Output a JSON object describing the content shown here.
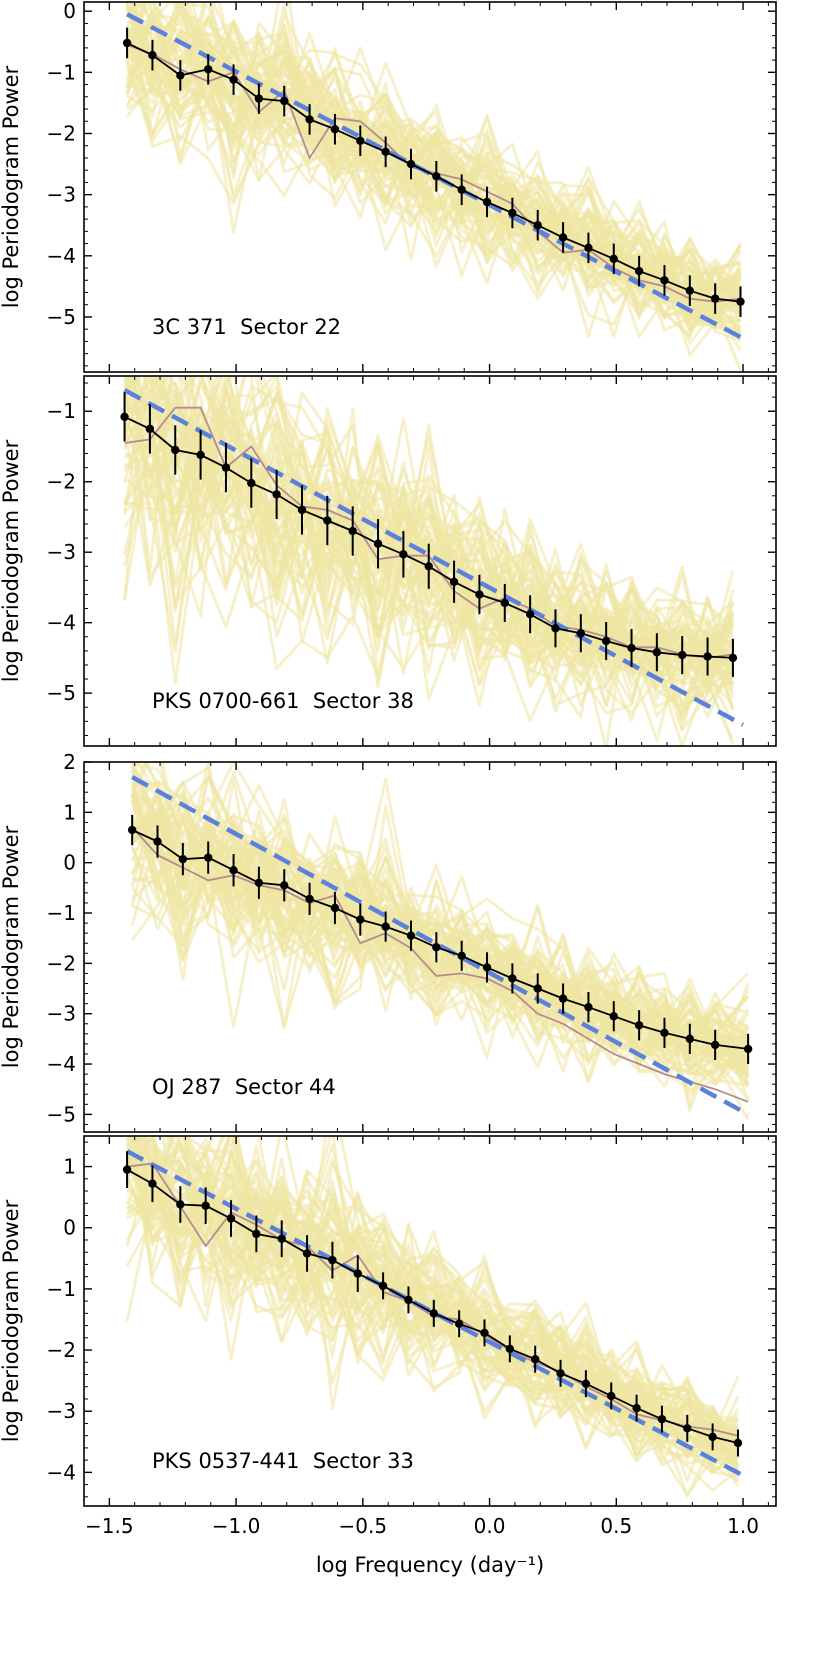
{
  "chart_data": [
    {
      "type": "line",
      "source_label": "3C 371  Sector 22",
      "ylabel": "log Periodogram Power",
      "xlabel": "",
      "xlim": [
        -1.6,
        1.13
      ],
      "ylim": [
        -5.9,
        0.15
      ],
      "xticks": [
        -1.5,
        -1.0,
        -0.5,
        0.0,
        0.5,
        1.0
      ],
      "xtick_labels": [],
      "yticks": [
        0,
        -1,
        -2,
        -3,
        -4,
        -5
      ],
      "ytick_labels": [
        "0",
        "−1",
        "−2",
        "−3",
        "−4",
        "−5"
      ],
      "series": [
        {
          "style": "observed-binned",
          "x": [
            -1.43,
            -1.33,
            -1.22,
            -1.11,
            -1.01,
            -0.91,
            -0.81,
            -0.71,
            -0.61,
            -0.51,
            -0.41,
            -0.31,
            -0.21,
            -0.11,
            -0.01,
            0.09,
            0.19,
            0.29,
            0.39,
            0.49,
            0.59,
            0.69,
            0.79,
            0.89,
            0.99
          ],
          "y": [
            -0.52,
            -0.72,
            -1.05,
            -0.95,
            -1.12,
            -1.43,
            -1.47,
            -1.77,
            -1.93,
            -2.12,
            -2.3,
            -2.5,
            -2.7,
            -2.92,
            -3.12,
            -3.3,
            -3.5,
            -3.7,
            -3.87,
            -4.05,
            -4.25,
            -4.4,
            -4.57,
            -4.7,
            -4.75
          ],
          "yerr": [
            0.25,
            0.25,
            0.25,
            0.25,
            0.25,
            0.25,
            0.25,
            0.25,
            0.25,
            0.25,
            0.25,
            0.25,
            0.25,
            0.25,
            0.25,
            0.25,
            0.25,
            0.25,
            0.25,
            0.25,
            0.25,
            0.25,
            0.25,
            0.25,
            0.25
          ]
        },
        {
          "style": "raw-periodogram",
          "x": [
            -1.43,
            -1.33,
            -1.22,
            -1.11,
            -1.01,
            -0.91,
            -0.81,
            -0.71,
            -0.61,
            -0.51,
            -0.41,
            -0.31,
            -0.21,
            -0.11,
            -0.01,
            0.09,
            0.19,
            0.29,
            0.39,
            0.49,
            0.59,
            0.69,
            0.79,
            0.89,
            0.99
          ],
          "y": [
            -0.55,
            -0.7,
            -0.95,
            -1.15,
            -1.0,
            -1.65,
            -1.3,
            -2.4,
            -1.75,
            -1.8,
            -2.15,
            -2.55,
            -2.65,
            -2.75,
            -2.95,
            -3.15,
            -3.6,
            -3.95,
            -3.9,
            -4.2,
            -4.4,
            -4.5,
            -4.7,
            -4.75,
            -4.7
          ]
        },
        {
          "style": "model-fit",
          "x": [
            -1.43,
            1.0
          ],
          "y": [
            -0.05,
            -5.35
          ]
        }
      ]
    },
    {
      "type": "line",
      "source_label": "PKS 0700-661  Sector 38",
      "ylabel": "log Periodogram Power",
      "xlabel": "",
      "xlim": [
        -1.6,
        1.13
      ],
      "ylim": [
        -5.75,
        -0.5
      ],
      "xticks": [
        -1.5,
        -1.0,
        -0.5,
        0.0,
        0.5,
        1.0
      ],
      "xtick_labels": [],
      "yticks": [
        -1,
        -2,
        -3,
        -4,
        -5
      ],
      "ytick_labels": [
        "−1",
        "−2",
        "−3",
        "−4",
        "−5"
      ],
      "series": [
        {
          "style": "observed-binned",
          "x": [
            -1.44,
            -1.34,
            -1.24,
            -1.14,
            -1.04,
            -0.94,
            -0.84,
            -0.74,
            -0.64,
            -0.54,
            -0.44,
            -0.34,
            -0.24,
            -0.14,
            -0.04,
            0.06,
            0.16,
            0.26,
            0.36,
            0.46,
            0.56,
            0.66,
            0.76,
            0.86,
            0.96
          ],
          "y": [
            -1.08,
            -1.25,
            -1.55,
            -1.62,
            -1.8,
            -2.02,
            -2.18,
            -2.4,
            -2.55,
            -2.7,
            -2.88,
            -3.03,
            -3.2,
            -3.42,
            -3.6,
            -3.72,
            -3.88,
            -4.08,
            -4.15,
            -4.26,
            -4.36,
            -4.42,
            -4.46,
            -4.48,
            -4.5
          ],
          "yerr": [
            0.35,
            0.35,
            0.35,
            0.35,
            0.35,
            0.35,
            0.35,
            0.35,
            0.35,
            0.35,
            0.35,
            0.33,
            0.32,
            0.3,
            0.28,
            0.27,
            0.27,
            0.27,
            0.27,
            0.27,
            0.27,
            0.27,
            0.27,
            0.27,
            0.27
          ]
        },
        {
          "style": "raw-periodogram",
          "x": [
            -1.44,
            -1.34,
            -1.24,
            -1.14,
            -1.04,
            -0.94,
            -0.84,
            -0.74,
            -0.64,
            -0.54,
            -0.44,
            -0.34,
            -0.24,
            -0.14,
            -0.04,
            0.06,
            0.16,
            0.26,
            0.36,
            0.46,
            0.56,
            0.66,
            0.76,
            0.86,
            0.96
          ],
          "y": [
            -1.45,
            -1.4,
            -0.95,
            -0.95,
            -1.8,
            -1.5,
            -2.05,
            -2.35,
            -2.4,
            -2.55,
            -3.1,
            -3.05,
            -3.05,
            -3.55,
            -3.8,
            -3.65,
            -3.8,
            -4.05,
            -4.1,
            -4.2,
            -4.35,
            -4.35,
            -4.45,
            -4.5,
            -4.45
          ]
        },
        {
          "style": "model-fit",
          "x": [
            -1.44,
            1.0
          ],
          "y": [
            -0.7,
            -5.45
          ]
        }
      ]
    },
    {
      "type": "line",
      "source_label": "OJ 287  Sector 44",
      "ylabel": "log Periodogram Power",
      "xlabel": "",
      "xlim": [
        -1.6,
        1.13
      ],
      "ylim": [
        -5.35,
        2.0
      ],
      "xticks": [
        -1.5,
        -1.0,
        -0.5,
        0.0,
        0.5,
        1.0
      ],
      "xtick_labels": [],
      "yticks": [
        2,
        1,
        0,
        -1,
        -2,
        -3,
        -4,
        -5
      ],
      "ytick_labels": [
        "2",
        "1",
        "0",
        "−1",
        "−2",
        "−3",
        "−4",
        "−5"
      ],
      "series": [
        {
          "style": "observed-binned",
          "x": [
            -1.41,
            -1.31,
            -1.21,
            -1.11,
            -1.01,
            -0.91,
            -0.81,
            -0.71,
            -0.61,
            -0.51,
            -0.41,
            -0.31,
            -0.21,
            -0.11,
            -0.01,
            0.09,
            0.19,
            0.29,
            0.39,
            0.49,
            0.59,
            0.69,
            0.79,
            0.89,
            1.02
          ],
          "y": [
            0.65,
            0.42,
            0.07,
            0.1,
            -0.15,
            -0.4,
            -0.45,
            -0.72,
            -0.9,
            -1.13,
            -1.27,
            -1.45,
            -1.68,
            -1.85,
            -2.08,
            -2.3,
            -2.5,
            -2.7,
            -2.87,
            -3.05,
            -3.23,
            -3.38,
            -3.5,
            -3.62,
            -3.7
          ],
          "yerr": [
            0.3,
            0.32,
            0.32,
            0.32,
            0.32,
            0.32,
            0.32,
            0.32,
            0.32,
            0.32,
            0.3,
            0.3,
            0.3,
            0.3,
            0.3,
            0.3,
            0.3,
            0.3,
            0.3,
            0.3,
            0.3,
            0.3,
            0.3,
            0.3,
            0.3
          ]
        },
        {
          "style": "raw-periodogram",
          "x": [
            -1.41,
            -1.31,
            -1.21,
            -1.11,
            -1.01,
            -0.91,
            -0.81,
            -0.71,
            -0.61,
            -0.51,
            -0.41,
            -0.31,
            -0.21,
            -0.11,
            -0.01,
            0.09,
            0.19,
            0.29,
            0.39,
            0.49,
            0.59,
            0.69,
            0.79,
            0.89,
            1.02
          ],
          "y": [
            0.7,
            0.15,
            -0.1,
            -0.35,
            -0.25,
            -0.45,
            -0.55,
            -0.8,
            -0.65,
            -1.6,
            -1.4,
            -1.7,
            -2.25,
            -2.2,
            -2.3,
            -2.55,
            -3.0,
            -3.2,
            -3.5,
            -3.8,
            -4.0,
            -4.2,
            -4.35,
            -4.5,
            -4.75
          ]
        },
        {
          "style": "model-fit",
          "x": [
            -1.41,
            1.02
          ],
          "y": [
            1.7,
            -5.0
          ]
        }
      ]
    },
    {
      "type": "line",
      "source_label": "PKS 0537-441  Sector 33",
      "ylabel": "log Periodogram Power",
      "xlabel": "log Frequency (day⁻¹)",
      "xlim": [
        -1.6,
        1.13
      ],
      "ylim": [
        -4.55,
        1.5
      ],
      "xticks": [
        -1.5,
        -1.0,
        -0.5,
        0.0,
        0.5,
        1.0
      ],
      "xtick_labels": [
        "−1.5",
        "−1.0",
        "−0.5",
        "0.0",
        "0.5",
        "1.0"
      ],
      "yticks": [
        1,
        0,
        -1,
        -2,
        -3,
        -4
      ],
      "ytick_labels": [
        "1",
        "0",
        "−1",
        "−2",
        "−3",
        "−4"
      ],
      "series": [
        {
          "style": "observed-binned",
          "x": [
            -1.43,
            -1.33,
            -1.22,
            -1.12,
            -1.02,
            -0.92,
            -0.82,
            -0.72,
            -0.62,
            -0.52,
            -0.42,
            -0.32,
            -0.22,
            -0.12,
            -0.02,
            0.08,
            0.18,
            0.28,
            0.38,
            0.48,
            0.58,
            0.68,
            0.78,
            0.88,
            0.98
          ],
          "y": [
            0.95,
            0.72,
            0.38,
            0.36,
            0.15,
            -0.1,
            -0.18,
            -0.42,
            -0.53,
            -0.75,
            -0.95,
            -1.18,
            -1.4,
            -1.57,
            -1.72,
            -1.98,
            -2.15,
            -2.38,
            -2.55,
            -2.75,
            -2.95,
            -3.13,
            -3.28,
            -3.42,
            -3.52
          ],
          "yerr": [
            0.3,
            0.3,
            0.3,
            0.3,
            0.3,
            0.3,
            0.3,
            0.3,
            0.3,
            0.3,
            0.22,
            0.22,
            0.22,
            0.22,
            0.22,
            0.22,
            0.22,
            0.22,
            0.22,
            0.22,
            0.22,
            0.22,
            0.22,
            0.22,
            0.22
          ]
        },
        {
          "style": "raw-periodogram",
          "x": [
            -1.43,
            -1.33,
            -1.22,
            -1.12,
            -1.02,
            -0.92,
            -0.82,
            -0.72,
            -0.62,
            -0.52,
            -0.42,
            -0.32,
            -0.22,
            -0.12,
            -0.02,
            0.08,
            0.18,
            0.28,
            0.38,
            0.48,
            0.58,
            0.68,
            0.78,
            0.88,
            0.98
          ],
          "y": [
            1.0,
            1.05,
            0.35,
            -0.3,
            0.25,
            0.05,
            -0.2,
            -0.3,
            -0.7,
            -0.45,
            -1.05,
            -1.2,
            -1.45,
            -1.5,
            -1.75,
            -2.0,
            -2.2,
            -2.35,
            -2.6,
            -2.8,
            -3.05,
            -3.15,
            -3.25,
            -3.3,
            -3.4
          ]
        },
        {
          "style": "model-fit",
          "x": [
            -1.43,
            1.0
          ],
          "y": [
            1.25,
            -4.05
          ]
        }
      ]
    }
  ],
  "colors": {
    "observed": "#000000",
    "raw_periodogram": "#b48c90",
    "model_fit": "#5b80dd",
    "simulations": "#efe5a3"
  }
}
